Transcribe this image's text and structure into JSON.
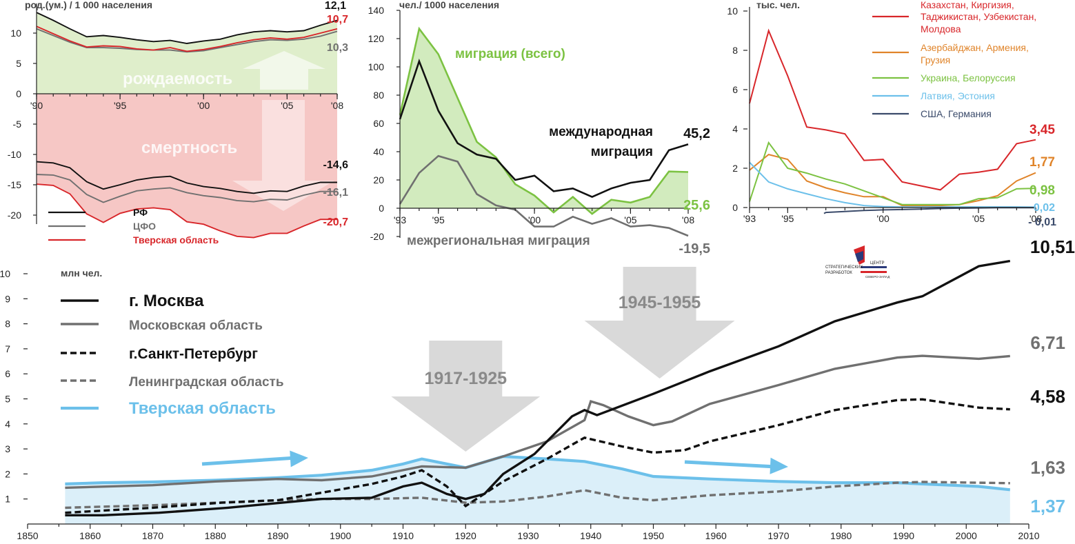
{
  "colors": {
    "black": "#111111",
    "gray": "#707070",
    "red": "#d8262a",
    "green": "#7cc242",
    "orange": "#e0842a",
    "lightblue": "#6cc0ea",
    "darkblue": "#3a4a6a",
    "birth_fill": "#dfeecb",
    "death_fill": "#f6c7c5",
    "migr_fill": "#d2ebbe",
    "tver_fill": "#dbeff9",
    "arrow_gray": "#d9d9d9"
  },
  "logo": {
    "line1": "СТРАТЕГИЧЕСКИХ",
    "line2": "ЦЕНТР",
    "line3": "РАЗРАБОТОК",
    "line4": "СЕВЕРО-ЗАПАД"
  },
  "chart_data": [
    {
      "id": "vital_rates",
      "type": "area",
      "unit_label": "род.(ум.) / 1 000 населения",
      "x_ticks": [
        "'90",
        "'95",
        "'00",
        "'05",
        "'08"
      ],
      "y_ticks": [
        "10",
        "5",
        "0",
        "-5",
        "-10",
        "-15",
        "-20"
      ],
      "ylim": [
        -24,
        14
      ],
      "x": [
        1990,
        1991,
        1992,
        1993,
        1994,
        1995,
        1996,
        1997,
        1998,
        1999,
        2000,
        2001,
        2002,
        2003,
        2004,
        2005,
        2006,
        2007,
        2008
      ],
      "overlay_labels": {
        "births": "рождаемость",
        "deaths": "смертность"
      },
      "series": [
        {
          "name": "РФ",
          "color_key": "black",
          "kind": "birth",
          "values": [
            13.4,
            12.1,
            10.7,
            9.4,
            9.6,
            9.3,
            8.9,
            8.6,
            8.8,
            8.3,
            8.7,
            9.0,
            9.7,
            10.2,
            10.4,
            10.2,
            10.4,
            11.3,
            12.1
          ]
        },
        {
          "name": "ЦФО",
          "color_key": "gray",
          "kind": "birth",
          "values": [
            10.7,
            9.6,
            8.5,
            7.6,
            7.6,
            7.5,
            7.3,
            7.2,
            7.2,
            6.9,
            7.1,
            7.6,
            8.1,
            8.6,
            8.9,
            8.8,
            9.0,
            9.5,
            10.3
          ]
        },
        {
          "name": "Тверская область",
          "color_key": "red",
          "kind": "birth",
          "values": [
            11.1,
            9.9,
            8.7,
            7.7,
            7.9,
            7.8,
            7.4,
            7.2,
            7.6,
            7.0,
            7.3,
            7.8,
            8.4,
            8.9,
            9.2,
            9.0,
            9.3,
            10.0,
            10.7
          ]
        },
        {
          "name": "РФ",
          "color_key": "black",
          "kind": "death",
          "values": [
            -11.2,
            -11.4,
            -12.2,
            -14.5,
            -15.7,
            -15.0,
            -14.2,
            -13.8,
            -13.6,
            -14.7,
            -15.3,
            -15.6,
            -16.1,
            -16.4,
            -16.0,
            -16.1,
            -15.2,
            -14.6,
            -14.6
          ]
        },
        {
          "name": "ЦФО",
          "color_key": "gray",
          "kind": "death",
          "values": [
            -13.3,
            -13.4,
            -14.2,
            -16.6,
            -17.9,
            -16.9,
            -16.0,
            -15.7,
            -15.5,
            -16.3,
            -16.8,
            -17.1,
            -17.6,
            -17.8,
            -17.4,
            -17.5,
            -16.7,
            -16.1,
            -16.1
          ]
        },
        {
          "name": "Тверская область",
          "color_key": "red",
          "kind": "death",
          "values": [
            -14.9,
            -15.1,
            -16.5,
            -19.8,
            -21.2,
            -19.7,
            -19.0,
            -18.8,
            -19.1,
            -21.1,
            -21.5,
            -22.6,
            -23.5,
            -23.7,
            -23.0,
            -23.0,
            -21.8,
            -20.7,
            -20.7
          ]
        }
      ],
      "end_labels": {
        "birth_rf": "12,1",
        "birth_tver": "10,7",
        "birth_cfo": "10,3",
        "death_rf": "-14,6",
        "death_cfo": "-16,1",
        "death_tver": "-20,7"
      },
      "legend": [
        {
          "label": "РФ",
          "color_key": "black"
        },
        {
          "label": "ЦФО",
          "color_key": "gray"
        },
        {
          "label": "Тверская область",
          "color_key": "red"
        }
      ]
    },
    {
      "id": "migration",
      "type": "line",
      "unit_label": "чел./ 1000 населения",
      "x_ticks": [
        "'93",
        "'95",
        "'00",
        "'05",
        "'08"
      ],
      "y_ticks": [
        "140",
        "120",
        "100",
        "80",
        "60",
        "40",
        "20",
        "0",
        "-20"
      ],
      "ylim": [
        -20,
        140
      ],
      "x": [
        1993,
        1994,
        1995,
        1996,
        1997,
        1998,
        1999,
        2000,
        2001,
        2002,
        2003,
        2004,
        2005,
        2006,
        2007,
        2008
      ],
      "series": [
        {
          "name": "миграция (всего)",
          "color_key": "green",
          "values": [
            66,
            127,
            109,
            78,
            47,
            36,
            17,
            9,
            -3,
            8,
            -4,
            6,
            4,
            8,
            26,
            25.6
          ]
        },
        {
          "name": "международная миграция",
          "color_key": "black",
          "values": [
            63,
            104,
            69,
            46,
            38,
            35,
            20,
            23,
            12,
            14,
            8,
            14,
            18,
            20,
            41,
            45.2
          ]
        },
        {
          "name": "межрегиональная миграция",
          "color_key": "gray",
          "values": [
            3,
            25,
            37,
            33,
            10,
            2,
            -1,
            -13,
            -13,
            -6,
            -11,
            -7,
            -13,
            -12,
            -14,
            -19.5
          ]
        }
      ],
      "end_labels": {
        "international": "45,2",
        "total": "25,6",
        "interregional": "-19,5"
      },
      "labels": {
        "total": "миграция (всего)",
        "international_1": "международная",
        "international_2": "миграция",
        "interregional": "межрегиональная миграция"
      }
    },
    {
      "id": "migration_by_country",
      "type": "line",
      "unit_label": "тыс. чел.",
      "x_ticks": [
        "'93",
        "'95",
        "'00",
        "'05",
        "'08"
      ],
      "y_ticks": [
        "10",
        "8",
        "6",
        "4",
        "2",
        "0"
      ],
      "ylim": [
        -0.3,
        10
      ],
      "x": [
        1993,
        1994,
        1995,
        1996,
        1997,
        1998,
        1999,
        2000,
        2001,
        2002,
        2003,
        2004,
        2005,
        2006,
        2007,
        2008
      ],
      "series": [
        {
          "name": "Казахстан, Киргизия, Таджикистан, Узбекистан, Молдова",
          "color_key": "red",
          "values": [
            5.3,
            9.0,
            6.7,
            4.1,
            3.95,
            3.75,
            2.4,
            2.45,
            1.3,
            1.1,
            0.9,
            1.7,
            1.8,
            1.95,
            3.25,
            3.45
          ]
        },
        {
          "name": "Азербайджан, Армения, Грузия",
          "color_key": "orange",
          "values": [
            1.9,
            2.7,
            2.45,
            1.35,
            1.0,
            0.75,
            0.55,
            0.55,
            0.1,
            0.1,
            0.1,
            0.15,
            0.35,
            0.6,
            1.35,
            1.77
          ]
        },
        {
          "name": "Украина, Белоруссия",
          "color_key": "green",
          "values": [
            0.3,
            3.3,
            2.0,
            1.75,
            1.45,
            1.2,
            0.85,
            0.5,
            0.15,
            0.15,
            0.15,
            0.15,
            0.45,
            0.5,
            0.95,
            0.98
          ]
        },
        {
          "name": "Латвия, Эстония",
          "color_key": "lightblue",
          "values": [
            2.3,
            1.3,
            0.95,
            0.7,
            0.45,
            0.25,
            0.1,
            0.05,
            0.03,
            0.03,
            0.03,
            0.03,
            0.03,
            0.03,
            0.03,
            0.02
          ]
        },
        {
          "name": "США, Германия",
          "color_key": "darkblue",
          "values": [
            null,
            null,
            null,
            null,
            -0.25,
            -0.2,
            -0.15,
            -0.12,
            -0.1,
            -0.08,
            -0.05,
            -0.03,
            -0.02,
            -0.01,
            -0.01,
            -0.01
          ]
        }
      ],
      "end_labels": {
        "central_asia": "3,45",
        "caucasus": "1,77",
        "ukraine": "0,98",
        "baltic": "0,02",
        "usa": "- 0,01"
      }
    },
    {
      "id": "population",
      "type": "line",
      "unit_label": "млн чел.",
      "x_ticks": [
        "1850",
        "1860",
        "1870",
        "1880",
        "1890",
        "1900",
        "1910",
        "1920",
        "1930",
        "1940",
        "1950",
        "1960",
        "1970",
        "1980",
        "1990",
        "2000",
        "2010"
      ],
      "y_ticks": [
        "10",
        "9",
        "8",
        "7",
        "6",
        "5",
        "4",
        "3",
        "2",
        "1"
      ],
      "xlim": [
        1850,
        2010
      ],
      "ylim": [
        0,
        10.5
      ],
      "arrows": [
        {
          "label": "1917-1925",
          "x": 1920
        },
        {
          "label": "1945-1955",
          "x": 1951
        }
      ],
      "series": [
        {
          "name": "г. Москва",
          "color_key": "black",
          "style": "solid",
          "x": [
            1856,
            1862,
            1871,
            1882,
            1897,
            1905,
            1910,
            1913,
            1917,
            1920,
            1923,
            1926,
            1931,
            1937,
            1939,
            1941,
            1950,
            1959,
            1970,
            1979,
            1989,
            1993,
            2002,
            2007
          ],
          "values": [
            0.35,
            0.35,
            0.45,
            0.65,
            1.0,
            1.05,
            1.5,
            1.65,
            1.2,
            1.0,
            1.2,
            2.0,
            2.8,
            4.3,
            4.55,
            4.35,
            5.2,
            6.1,
            7.1,
            8.1,
            8.85,
            9.1,
            10.3,
            10.51
          ]
        },
        {
          "name": "Московская область",
          "color_key": "gray",
          "style": "solid",
          "x": [
            1856,
            1870,
            1880,
            1890,
            1897,
            1905,
            1913,
            1920,
            1926,
            1933,
            1939,
            1940,
            1942,
            1946,
            1950,
            1953,
            1959,
            1970,
            1979,
            1989,
            1993,
            2002,
            2007
          ],
          "values": [
            1.45,
            1.55,
            1.7,
            1.8,
            1.75,
            1.9,
            2.3,
            2.25,
            2.7,
            3.3,
            4.15,
            4.9,
            4.75,
            4.3,
            3.95,
            4.1,
            4.8,
            5.55,
            6.2,
            6.65,
            6.72,
            6.6,
            6.71
          ]
        },
        {
          "name": "г.Санкт-Петербург",
          "color_key": "black",
          "style": "dashed",
          "x": [
            1856,
            1870,
            1881,
            1890,
            1897,
            1905,
            1910,
            1913,
            1917,
            1920,
            1926,
            1933,
            1939,
            1945,
            1950,
            1955,
            1959,
            1970,
            1979,
            1989,
            1993,
            2002,
            2007
          ],
          "values": [
            0.45,
            0.65,
            0.85,
            0.95,
            1.25,
            1.6,
            1.9,
            2.15,
            1.5,
            0.72,
            1.7,
            2.6,
            3.45,
            3.1,
            2.85,
            2.95,
            3.3,
            3.95,
            4.55,
            4.95,
            4.98,
            4.65,
            4.58
          ]
        },
        {
          "name": "Ленинградская область",
          "color_key": "gray",
          "style": "dashed",
          "x": [
            1856,
            1870,
            1890,
            1897,
            1905,
            1913,
            1920,
            1926,
            1933,
            1939,
            1945,
            1950,
            1959,
            1970,
            1979,
            1989,
            1993,
            2002,
            2007
          ],
          "values": [
            0.65,
            0.75,
            0.95,
            1.0,
            1.0,
            1.05,
            0.85,
            0.9,
            1.1,
            1.35,
            1.05,
            0.95,
            1.15,
            1.3,
            1.5,
            1.65,
            1.68,
            1.65,
            1.63
          ]
        },
        {
          "name": "Тверская область",
          "color_key": "lightblue",
          "style": "solid",
          "x": [
            1856,
            1862,
            1870,
            1880,
            1890,
            1897,
            1905,
            1910,
            1913,
            1920,
            1926,
            1933,
            1939,
            1945,
            1950,
            1959,
            1970,
            1979,
            1989,
            1993,
            2002,
            2007
          ],
          "values": [
            1.6,
            1.65,
            1.68,
            1.75,
            1.85,
            1.95,
            2.15,
            2.4,
            2.6,
            2.25,
            2.7,
            2.6,
            2.5,
            2.2,
            1.9,
            1.8,
            1.7,
            1.65,
            1.65,
            1.6,
            1.5,
            1.37
          ]
        }
      ],
      "end_labels": {
        "moscow": "10,51",
        "mo": "6,71",
        "spb": "4,58",
        "lo": "1,63",
        "tver": "1,37"
      },
      "legend": [
        {
          "label": "г. Москва",
          "color_key": "black",
          "style": "solid"
        },
        {
          "label": "Московская область",
          "color_key": "gray",
          "style": "solid"
        },
        {
          "label": "г.Санкт-Петербург",
          "color_key": "black",
          "style": "dashed"
        },
        {
          "label": "Ленинградская область",
          "color_key": "gray",
          "style": "dashed"
        },
        {
          "label": "Тверская область",
          "color_key": "lightblue",
          "style": "solid"
        }
      ]
    }
  ]
}
